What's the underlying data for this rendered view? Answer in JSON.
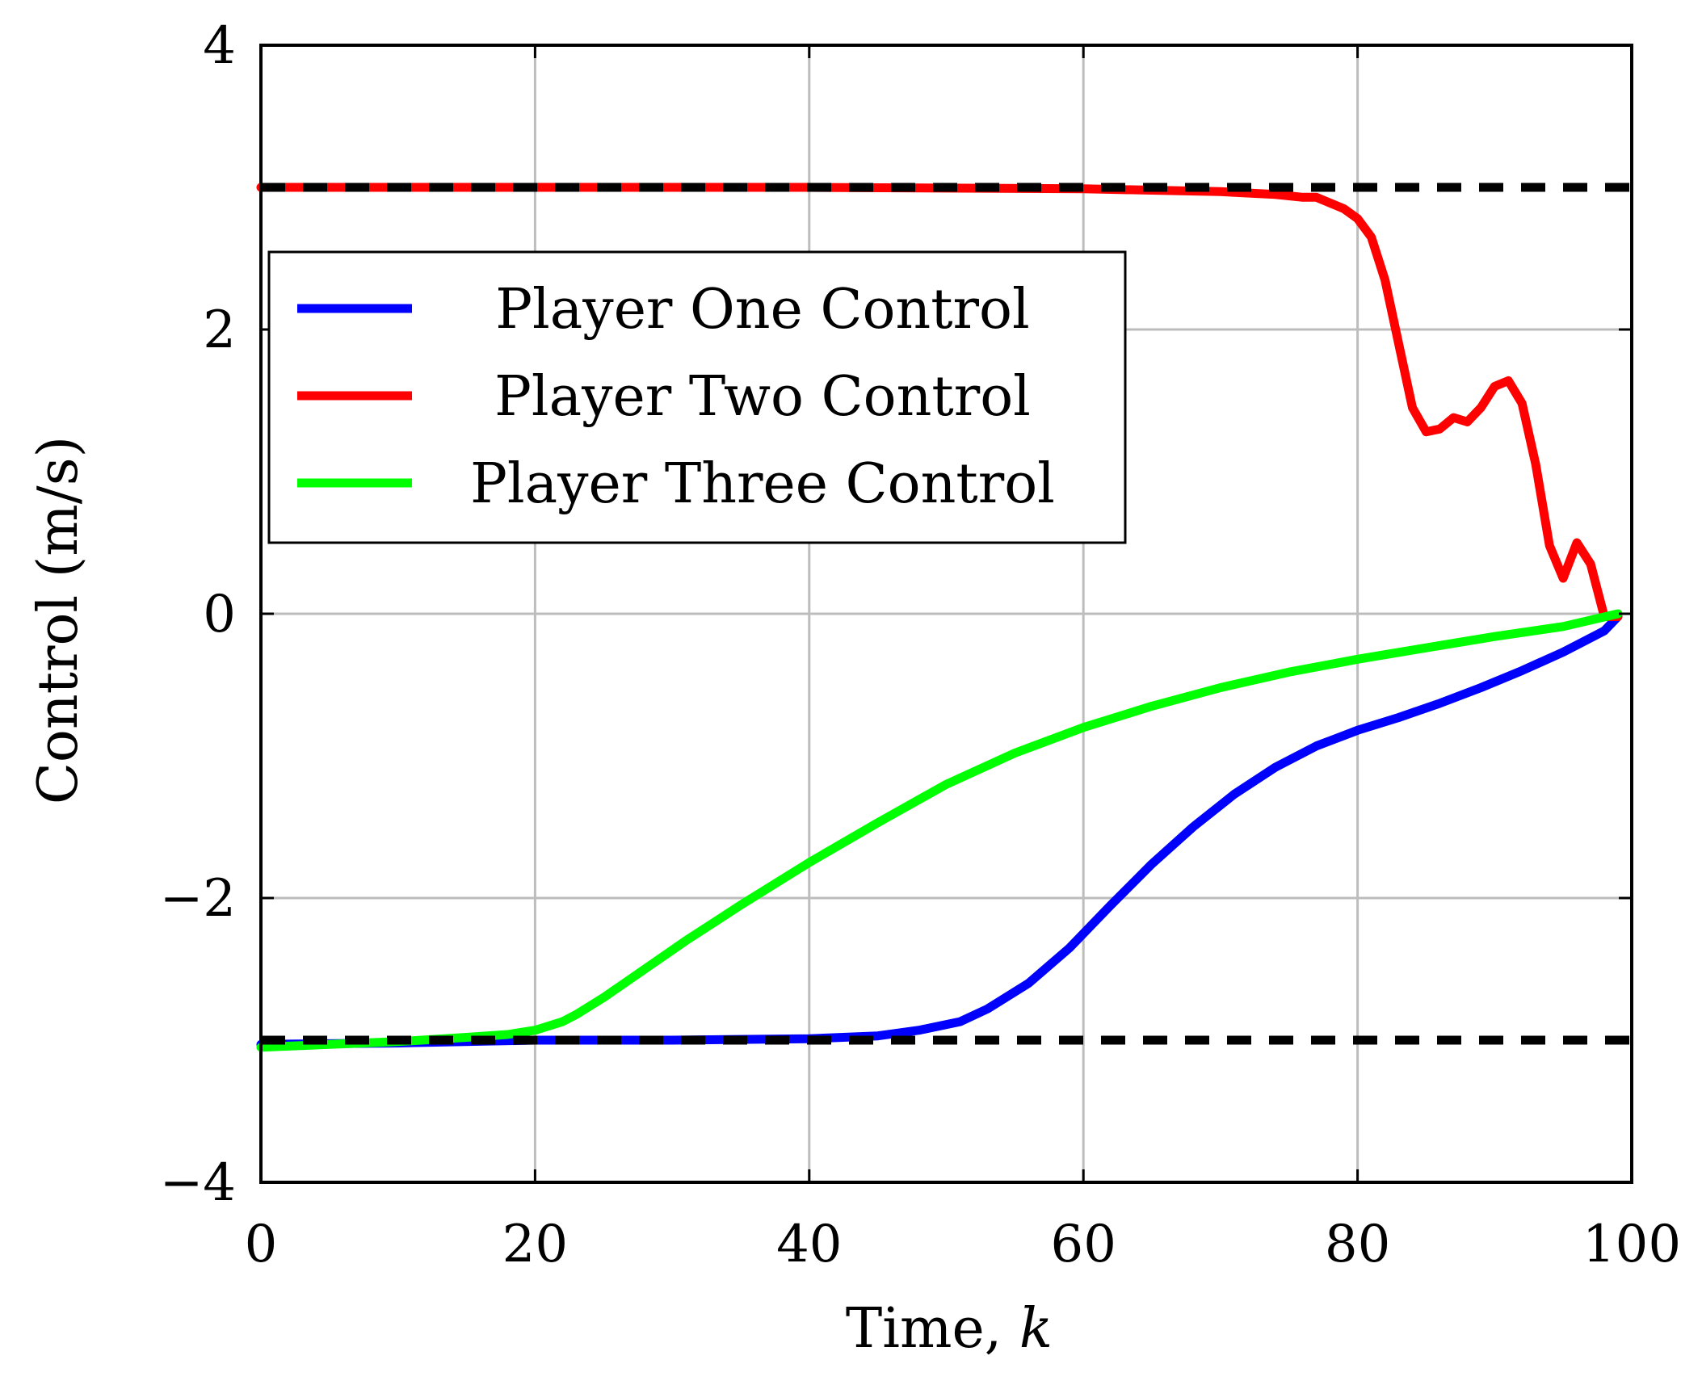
{
  "chart_data": {
    "type": "line",
    "title": "",
    "xlabel_main": "Time, ",
    "xlabel_var": "k",
    "ylabel": "Control (m/s)",
    "xlim": [
      0,
      100
    ],
    "ylim": [
      -4,
      4
    ],
    "x_ticks": [
      {
        "value": 0,
        "label": "0"
      },
      {
        "value": 20,
        "label": "20"
      },
      {
        "value": 40,
        "label": "40"
      },
      {
        "value": 60,
        "label": "60"
      },
      {
        "value": 80,
        "label": "80"
      },
      {
        "value": 100,
        "label": "100"
      }
    ],
    "y_ticks": [
      {
        "value": -4,
        "label": "−4"
      },
      {
        "value": -2,
        "label": "−2"
      },
      {
        "value": 0,
        "label": "0"
      },
      {
        "value": 2,
        "label": "2"
      },
      {
        "value": 4,
        "label": "4"
      }
    ],
    "grid": true,
    "legend_position": "upper-left",
    "bounds": [
      {
        "y": 3,
        "style": "dashed",
        "color": "#000000"
      },
      {
        "y": -3,
        "style": "dashed",
        "color": "#000000"
      }
    ],
    "series": [
      {
        "name": "Player One Control",
        "color": "#0000ff",
        "points": [
          [
            0,
            -3.03
          ],
          [
            10,
            -3.02
          ],
          [
            20,
            -3.0
          ],
          [
            30,
            -3.0
          ],
          [
            40,
            -2.99
          ],
          [
            45,
            -2.97
          ],
          [
            48,
            -2.93
          ],
          [
            51,
            -2.87
          ],
          [
            53,
            -2.78
          ],
          [
            56,
            -2.6
          ],
          [
            59,
            -2.35
          ],
          [
            62,
            -2.05
          ],
          [
            65,
            -1.76
          ],
          [
            68,
            -1.5
          ],
          [
            71,
            -1.27
          ],
          [
            74,
            -1.08
          ],
          [
            77,
            -0.93
          ],
          [
            80,
            -0.82
          ],
          [
            83,
            -0.73
          ],
          [
            86,
            -0.63
          ],
          [
            89,
            -0.52
          ],
          [
            92,
            -0.4
          ],
          [
            95,
            -0.27
          ],
          [
            98,
            -0.12
          ],
          [
            99,
            -0.02
          ]
        ]
      },
      {
        "name": "Player Two Control",
        "color": "#ff0000",
        "points": [
          [
            0,
            3.0
          ],
          [
            20,
            3.0
          ],
          [
            40,
            3.0
          ],
          [
            60,
            2.99
          ],
          [
            65,
            2.98
          ],
          [
            70,
            2.97
          ],
          [
            74,
            2.95
          ],
          [
            76,
            2.93
          ],
          [
            77,
            2.93
          ],
          [
            78,
            2.89
          ],
          [
            79,
            2.85
          ],
          [
            80,
            2.78
          ],
          [
            81,
            2.65
          ],
          [
            82,
            2.35
          ],
          [
            83,
            1.9
          ],
          [
            84,
            1.45
          ],
          [
            85,
            1.28
          ],
          [
            86,
            1.3
          ],
          [
            87,
            1.38
          ],
          [
            88,
            1.35
          ],
          [
            89,
            1.45
          ],
          [
            90,
            1.6
          ],
          [
            91,
            1.64
          ],
          [
            92,
            1.48
          ],
          [
            93,
            1.05
          ],
          [
            94,
            0.48
          ],
          [
            95,
            0.25
          ],
          [
            96,
            0.5
          ],
          [
            97,
            0.35
          ],
          [
            98,
            -0.02
          ],
          [
            99,
            -0.02
          ]
        ]
      },
      {
        "name": "Player Three Control",
        "color": "#00ff00",
        "points": [
          [
            0,
            -3.05
          ],
          [
            5,
            -3.03
          ],
          [
            10,
            -3.01
          ],
          [
            15,
            -2.98
          ],
          [
            18,
            -2.96
          ],
          [
            20,
            -2.93
          ],
          [
            22,
            -2.87
          ],
          [
            23,
            -2.82
          ],
          [
            25,
            -2.7
          ],
          [
            28,
            -2.5
          ],
          [
            31,
            -2.3
          ],
          [
            35,
            -2.05
          ],
          [
            40,
            -1.75
          ],
          [
            45,
            -1.47
          ],
          [
            50,
            -1.2
          ],
          [
            55,
            -0.98
          ],
          [
            60,
            -0.8
          ],
          [
            65,
            -0.65
          ],
          [
            70,
            -0.52
          ],
          [
            75,
            -0.41
          ],
          [
            80,
            -0.32
          ],
          [
            85,
            -0.24
          ],
          [
            90,
            -0.16
          ],
          [
            95,
            -0.09
          ],
          [
            99,
            0.0
          ]
        ]
      }
    ]
  }
}
